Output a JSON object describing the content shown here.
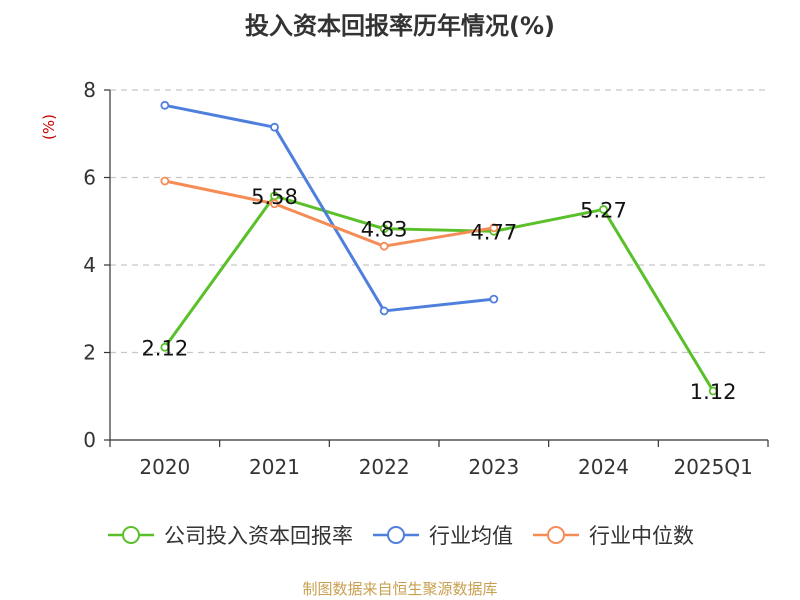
{
  "chart_data": {
    "type": "line",
    "title": "投入资本回报率历年情况(%)",
    "ylabel": "(%)",
    "xlabel": "",
    "ylim": [
      0,
      8
    ],
    "yticks": [
      0,
      2,
      4,
      6,
      8
    ],
    "categories": [
      "2020",
      "2021",
      "2022",
      "2023",
      "2024",
      "2025Q1"
    ],
    "series": [
      {
        "name": "公司投入资本回报率",
        "color": "#5ac02a",
        "values": [
          2.12,
          5.58,
          4.83,
          4.77,
          5.27,
          1.12
        ],
        "labels": [
          "2.12",
          "5.58",
          "4.83",
          "4.77",
          "5.27",
          "1.12"
        ]
      },
      {
        "name": "行业均值",
        "color": "#4f7fdc",
        "values": [
          7.65,
          7.15,
          2.95,
          3.22,
          null,
          null
        ]
      },
      {
        "name": "行业中位数",
        "color": "#f58c55",
        "values": [
          5.92,
          5.4,
          4.43,
          4.85,
          null,
          null
        ]
      }
    ],
    "grid": true,
    "legend_position": "bottom"
  },
  "source_note": "制图数据来自恒生聚源数据库"
}
